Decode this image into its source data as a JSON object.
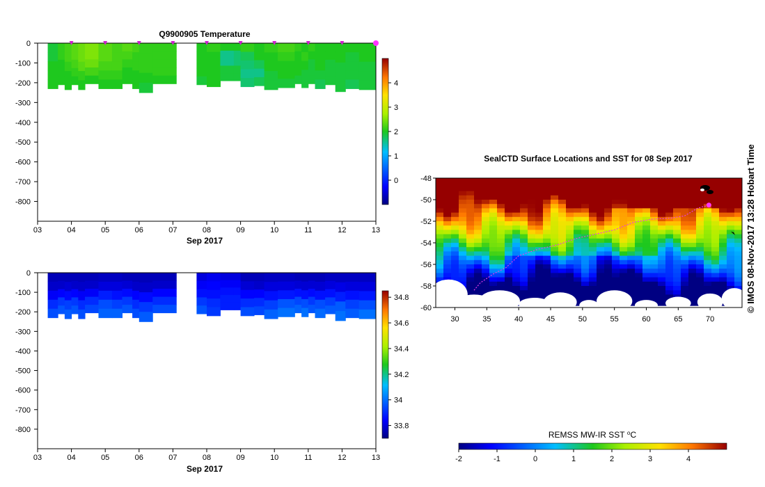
{
  "side_label": "© IMOS 08-Nov-2017 13:28 Hobart Time",
  "chart_data": [
    {
      "type": "heatmap",
      "name": "temperature-section",
      "title": "Q9900905  Temperature",
      "xlabel": "Sep 2017",
      "xticks": [
        "03",
        "04",
        "05",
        "06",
        "07",
        "08",
        "09",
        "10",
        "11",
        "12",
        "13"
      ],
      "xlim": [
        3,
        13
      ],
      "ylim": [
        -900,
        0
      ],
      "yticks": [
        0,
        -100,
        -200,
        -300,
        -400,
        -500,
        -600,
        -700,
        -800
      ],
      "cbar_ticks": [
        0,
        1,
        2,
        3,
        4
      ],
      "cbar_range": [
        -1,
        5
      ],
      "profile_marks": [
        4,
        5,
        6,
        7,
        8,
        9,
        10,
        11,
        12
      ],
      "last_profile": 13,
      "profiles": [
        {
          "x0": 3.3,
          "x1": 3.6,
          "depth": -230,
          "levels": [
            1.9,
            1.9,
            2.0,
            2.0,
            2.0
          ]
        },
        {
          "x0": 3.6,
          "x1": 3.8,
          "depth": -210,
          "levels": [
            2.1,
            2.1,
            2.0,
            2.0,
            2.0
          ]
        },
        {
          "x0": 3.8,
          "x1": 4.0,
          "depth": -235,
          "levels": [
            2.2,
            2.2,
            2.1,
            2.0,
            2.0
          ]
        },
        {
          "x0": 4.0,
          "x1": 4.2,
          "depth": -210,
          "levels": [
            2.3,
            2.3,
            2.2,
            2.1,
            2.0
          ]
        },
        {
          "x0": 4.2,
          "x1": 4.4,
          "depth": -235,
          "levels": [
            2.4,
            2.4,
            2.3,
            2.1,
            2.0
          ]
        },
        {
          "x0": 4.4,
          "x1": 4.8,
          "depth": -205,
          "levels": [
            2.5,
            2.5,
            2.4,
            2.2,
            2.0
          ]
        },
        {
          "x0": 4.8,
          "x1": 5.2,
          "depth": -230,
          "levels": [
            2.3,
            2.3,
            2.2,
            2.1,
            2.0
          ]
        },
        {
          "x0": 5.2,
          "x1": 5.5,
          "depth": -230,
          "levels": [
            2.2,
            2.2,
            2.2,
            2.1,
            2.0
          ]
        },
        {
          "x0": 5.5,
          "x1": 5.8,
          "depth": -205,
          "levels": [
            2.3,
            2.2,
            2.1,
            2.0,
            2.0
          ]
        },
        {
          "x0": 5.8,
          "x1": 6.0,
          "depth": -230,
          "levels": [
            2.2,
            2.1,
            2.1,
            2.0,
            2.0
          ]
        },
        {
          "x0": 6.0,
          "x1": 6.4,
          "depth": -250,
          "levels": [
            2.1,
            2.1,
            2.1,
            2.0,
            1.9
          ]
        },
        {
          "x0": 6.4,
          "x1": 7.1,
          "depth": -205,
          "levels": [
            2.1,
            2.1,
            2.1,
            2.1,
            2.0
          ]
        },
        {
          "x0": 7.7,
          "x1": 8.0,
          "depth": -210,
          "levels": [
            2.0,
            2.0,
            2.0,
            2.0,
            1.9
          ]
        },
        {
          "x0": 8.0,
          "x1": 8.4,
          "depth": -220,
          "levels": [
            2.1,
            2.0,
            2.0,
            2.0,
            2.0
          ]
        },
        {
          "x0": 8.4,
          "x1": 8.8,
          "depth": -190,
          "levels": [
            2.0,
            1.6,
            1.6,
            1.9,
            1.9
          ]
        },
        {
          "x0": 8.8,
          "x1": 9.0,
          "depth": -190,
          "levels": [
            2.0,
            1.7,
            1.7,
            1.9,
            1.9
          ]
        },
        {
          "x0": 9.0,
          "x1": 9.4,
          "depth": -220,
          "levels": [
            2.1,
            1.8,
            1.7,
            1.6,
            1.7
          ]
        },
        {
          "x0": 9.4,
          "x1": 9.7,
          "depth": -215,
          "levels": [
            2.0,
            2.0,
            1.8,
            1.6,
            1.8
          ]
        },
        {
          "x0": 9.7,
          "x1": 10.1,
          "depth": -235,
          "levels": [
            2.1,
            2.0,
            2.0,
            1.9,
            1.9
          ]
        },
        {
          "x0": 10.1,
          "x1": 10.6,
          "depth": -225,
          "levels": [
            2.2,
            2.1,
            2.0,
            2.0,
            1.9
          ]
        },
        {
          "x0": 10.6,
          "x1": 10.8,
          "depth": -205,
          "levels": [
            2.1,
            2.0,
            2.0,
            2.0,
            1.9
          ]
        },
        {
          "x0": 10.8,
          "x1": 11.0,
          "depth": -225,
          "levels": [
            2.0,
            2.1,
            2.0,
            1.9,
            1.9
          ]
        },
        {
          "x0": 11.0,
          "x1": 11.2,
          "depth": -205,
          "levels": [
            2.1,
            2.0,
            1.9,
            1.9,
            1.9
          ]
        },
        {
          "x0": 11.2,
          "x1": 11.5,
          "depth": -230,
          "levels": [
            2.0,
            2.0,
            2.0,
            1.9,
            1.8
          ]
        },
        {
          "x0": 11.5,
          "x1": 11.8,
          "depth": -210,
          "levels": [
            2.0,
            2.0,
            1.9,
            1.9,
            1.9
          ]
        },
        {
          "x0": 11.8,
          "x1": 12.1,
          "depth": -245,
          "levels": [
            2.0,
            2.0,
            1.9,
            1.9,
            1.9
          ]
        },
        {
          "x0": 12.1,
          "x1": 12.5,
          "depth": -230,
          "levels": [
            2.0,
            1.9,
            1.9,
            1.9,
            1.8
          ]
        },
        {
          "x0": 12.5,
          "x1": 13.0,
          "depth": -235,
          "levels": [
            2.0,
            2.0,
            1.9,
            1.9,
            1.9
          ]
        }
      ]
    },
    {
      "type": "heatmap",
      "name": "salinity-section",
      "title": "",
      "xlabel": "Sep 2017",
      "xticks": [
        "03",
        "04",
        "05",
        "06",
        "07",
        "08",
        "09",
        "10",
        "11",
        "12",
        "13"
      ],
      "xlim": [
        3,
        13
      ],
      "ylim": [
        -900,
        0
      ],
      "yticks": [
        0,
        -100,
        -200,
        -300,
        -400,
        -500,
        -600,
        -700,
        -800
      ],
      "cbar_ticks": [
        33.8,
        34,
        34.2,
        34.4,
        34.6,
        34.8
      ],
      "cbar_range": [
        33.7,
        34.85
      ],
      "profiles": [
        {
          "x0": 3.3,
          "x1": 3.6,
          "depth": -230,
          "levels": [
            33.76,
            33.78,
            33.83,
            33.9,
            33.95
          ]
        },
        {
          "x0": 3.6,
          "x1": 3.8,
          "depth": -210,
          "levels": [
            33.76,
            33.78,
            33.84,
            33.92,
            33.96
          ]
        },
        {
          "x0": 3.8,
          "x1": 4.0,
          "depth": -235,
          "levels": [
            33.76,
            33.79,
            33.85,
            33.93,
            33.97
          ]
        },
        {
          "x0": 4.0,
          "x1": 4.2,
          "depth": -210,
          "levels": [
            33.76,
            33.78,
            33.84,
            33.92,
            33.96
          ]
        },
        {
          "x0": 4.2,
          "x1": 4.4,
          "depth": -235,
          "levels": [
            33.76,
            33.78,
            33.83,
            33.9,
            33.95
          ]
        },
        {
          "x0": 4.4,
          "x1": 4.8,
          "depth": -205,
          "levels": [
            33.76,
            33.78,
            33.83,
            33.9,
            33.94
          ]
        },
        {
          "x0": 4.8,
          "x1": 5.2,
          "depth": -230,
          "levels": [
            33.77,
            33.8,
            33.88,
            33.95,
            33.98
          ]
        },
        {
          "x0": 5.2,
          "x1": 5.5,
          "depth": -230,
          "levels": [
            33.77,
            33.8,
            33.86,
            33.93,
            33.98
          ]
        },
        {
          "x0": 5.5,
          "x1": 5.8,
          "depth": -205,
          "levels": [
            33.76,
            33.79,
            33.85,
            33.92,
            33.96
          ]
        },
        {
          "x0": 5.8,
          "x1": 6.0,
          "depth": -230,
          "levels": [
            33.76,
            33.78,
            33.84,
            33.9,
            33.95
          ]
        },
        {
          "x0": 6.0,
          "x1": 6.4,
          "depth": -250,
          "levels": [
            33.76,
            33.78,
            33.85,
            33.92,
            33.97
          ]
        },
        {
          "x0": 6.4,
          "x1": 7.1,
          "depth": -205,
          "levels": [
            33.76,
            33.78,
            33.84,
            33.9,
            33.95
          ]
        },
        {
          "x0": 7.7,
          "x1": 8.0,
          "depth": -210,
          "levels": [
            33.8,
            33.83,
            33.86,
            33.92,
            33.96
          ]
        },
        {
          "x0": 8.0,
          "x1": 8.4,
          "depth": -220,
          "levels": [
            33.82,
            33.84,
            33.86,
            33.9,
            33.92
          ]
        },
        {
          "x0": 8.4,
          "x1": 8.8,
          "depth": -190,
          "levels": [
            33.8,
            33.83,
            33.86,
            33.88,
            33.88
          ]
        },
        {
          "x0": 8.8,
          "x1": 9.0,
          "depth": -190,
          "levels": [
            33.8,
            33.83,
            33.86,
            33.88,
            33.88
          ]
        },
        {
          "x0": 9.0,
          "x1": 9.4,
          "depth": -220,
          "levels": [
            33.76,
            33.79,
            33.84,
            33.9,
            33.95
          ]
        },
        {
          "x0": 9.4,
          "x1": 9.7,
          "depth": -215,
          "levels": [
            33.76,
            33.78,
            33.84,
            33.9,
            33.94
          ]
        },
        {
          "x0": 9.7,
          "x1": 10.1,
          "depth": -235,
          "levels": [
            33.77,
            33.8,
            33.86,
            33.93,
            33.98
          ]
        },
        {
          "x0": 10.1,
          "x1": 10.6,
          "depth": -225,
          "levels": [
            33.77,
            33.8,
            33.87,
            33.96,
            34.0
          ]
        },
        {
          "x0": 10.6,
          "x1": 10.8,
          "depth": -205,
          "levels": [
            33.76,
            33.79,
            33.86,
            33.94,
            33.98
          ]
        },
        {
          "x0": 10.8,
          "x1": 11.0,
          "depth": -225,
          "levels": [
            33.76,
            33.79,
            33.86,
            33.95,
            34.0
          ]
        },
        {
          "x0": 11.0,
          "x1": 11.2,
          "depth": -205,
          "levels": [
            33.76,
            33.79,
            33.85,
            33.92,
            33.96
          ]
        },
        {
          "x0": 11.2,
          "x1": 11.5,
          "depth": -230,
          "levels": [
            33.76,
            33.79,
            33.86,
            33.95,
            33.99
          ]
        },
        {
          "x0": 11.5,
          "x1": 11.8,
          "depth": -210,
          "levels": [
            33.77,
            33.8,
            33.86,
            33.93,
            33.97
          ]
        },
        {
          "x0": 11.8,
          "x1": 12.1,
          "depth": -245,
          "levels": [
            33.77,
            33.81,
            33.88,
            33.97,
            34.0
          ]
        },
        {
          "x0": 12.1,
          "x1": 12.5,
          "depth": -230,
          "levels": [
            33.77,
            33.8,
            33.86,
            33.93,
            33.97
          ]
        },
        {
          "x0": 12.5,
          "x1": 13.0,
          "depth": -235,
          "levels": [
            33.77,
            33.8,
            33.87,
            33.95,
            34.0
          ]
        }
      ]
    },
    {
      "type": "heatmap",
      "name": "sst-map",
      "title": "SealCTD Surface Locations and SST for 08 Sep 2017",
      "xlabel": "",
      "xlim": [
        27,
        75
      ],
      "ylim": [
        -60,
        -48
      ],
      "xticks": [
        30,
        35,
        40,
        45,
        50,
        55,
        60,
        65,
        70
      ],
      "yticks": [
        -48,
        -50,
        -52,
        -54,
        -56,
        -58,
        -60
      ],
      "colorbar_label": "REMSS MW-IR SST ⁰C",
      "cbar_ticks": [
        -2,
        -1,
        0,
        1,
        2,
        3,
        4
      ],
      "cbar_range": [
        -2,
        5
      ],
      "current_location": {
        "lon": 69.8,
        "lat": -50.5
      },
      "track": [
        [
          33,
          -58.4
        ],
        [
          34,
          -57.7
        ],
        [
          36,
          -56.9
        ],
        [
          38,
          -56.3
        ],
        [
          40,
          -55.2
        ],
        [
          43,
          -54.6
        ],
        [
          46,
          -54.2
        ],
        [
          49,
          -53.6
        ],
        [
          52,
          -53.2
        ],
        [
          55,
          -52.8
        ],
        [
          58,
          -52.1
        ],
        [
          61,
          -51.8
        ],
        [
          64,
          -51.7
        ],
        [
          66,
          -51.5
        ],
        [
          68,
          -50.8
        ],
        [
          69.8,
          -50.5
        ]
      ]
    }
  ]
}
